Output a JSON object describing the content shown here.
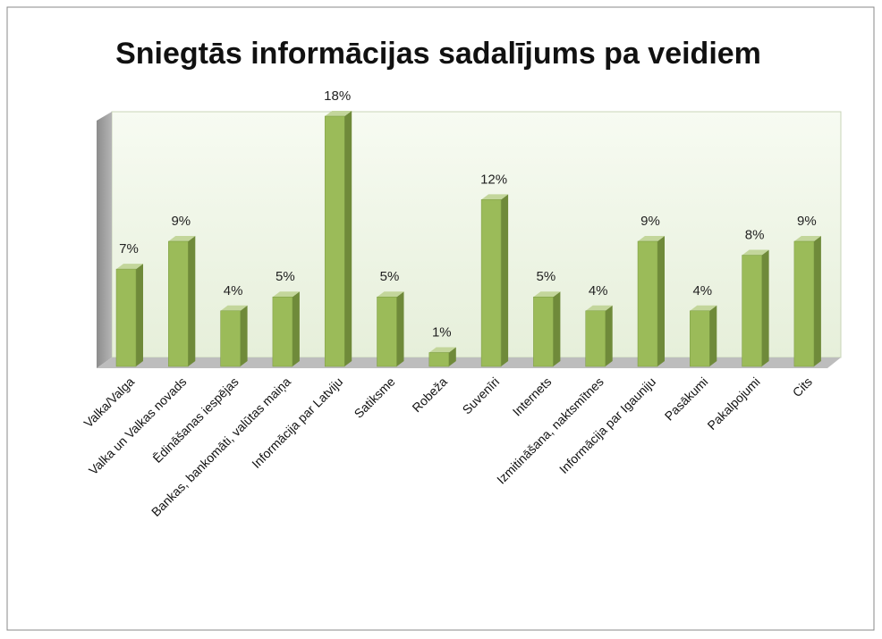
{
  "chart_data": {
    "type": "bar3d",
    "title": "Sniegtās informācijas sadalījums pa veidiem",
    "categories": [
      "Valka/Valga",
      "Valka un Valkas novads",
      "Ēdināšanas iespējas",
      "Bankas, bankomāti, valūtas maiņa",
      "Informācija par Latviju",
      "Satiksme",
      "Robeža",
      "Suvenīri",
      "Internets",
      "Izmitināšana, naktsmītnes",
      "Informācija par Igauniju",
      "Pasākumi",
      "Pakalpojumi",
      "Cits"
    ],
    "values": [
      7,
      9,
      4,
      5,
      18,
      5,
      1,
      12,
      5,
      4,
      9,
      4,
      8,
      9
    ],
    "value_labels": [
      "7%",
      "9%",
      "4%",
      "5%",
      "18%",
      "5%",
      "1%",
      "12%",
      "5%",
      "4%",
      "9%",
      "4%",
      "8%",
      "9%"
    ],
    "color": "#9bbb59"
  }
}
